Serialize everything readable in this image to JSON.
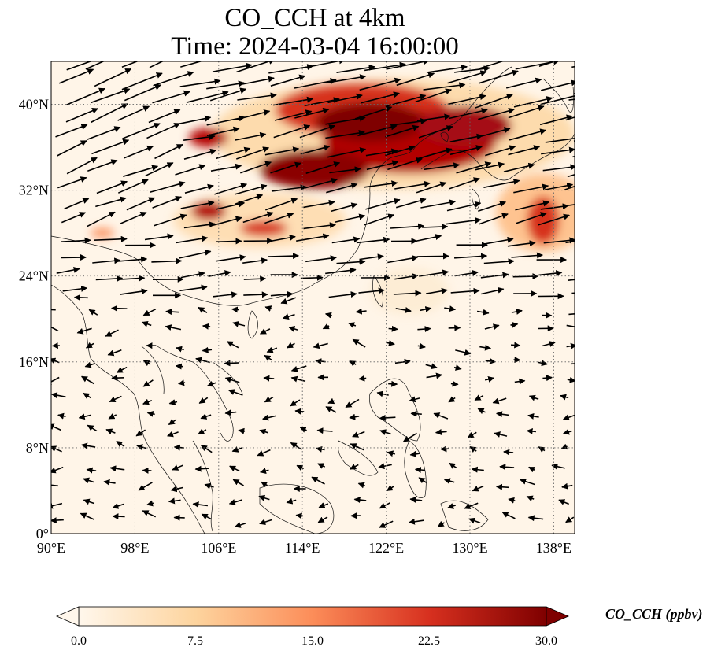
{
  "title_line1": "CO_CCH at 4km",
  "title_line2": "Time: 2024-03-04 16:00:00",
  "map": {
    "projection": "PlateCarree",
    "lon_range": [
      90,
      140
    ],
    "lat_range": [
      0,
      44
    ],
    "lon_ticks": [
      {
        "value": 90,
        "label": "90°E"
      },
      {
        "value": 98,
        "label": "98°E"
      },
      {
        "value": 106,
        "label": "106°E"
      },
      {
        "value": 114,
        "label": "114°E"
      },
      {
        "value": 122,
        "label": "122°E"
      },
      {
        "value": 130,
        "label": "130°E"
      },
      {
        "value": 138,
        "label": "138°E"
      }
    ],
    "lat_ticks": [
      {
        "value": 0,
        "label": "0°"
      },
      {
        "value": 8,
        "label": "8°N"
      },
      {
        "value": 16,
        "label": "16°N"
      },
      {
        "value": 24,
        "label": "24°N"
      },
      {
        "value": 32,
        "label": "32°N"
      },
      {
        "value": 40,
        "label": "40°N"
      }
    ],
    "gridlines": "dotted gray",
    "coastlines": true,
    "colormap": "OrRd",
    "vector_field": "wind arrows, mostly westerly north of 20°N"
  },
  "colorbar": {
    "label": "CO_CCH (ppbv)",
    "min": 0.0,
    "max": 30.0,
    "extend": "both",
    "ticks": [
      "0.0",
      "7.5",
      "15.0",
      "22.5",
      "30.0"
    ],
    "colors": [
      "#fff7ec",
      "#fdd49e",
      "#fc8d59",
      "#d7301f",
      "#7f0000"
    ]
  }
}
